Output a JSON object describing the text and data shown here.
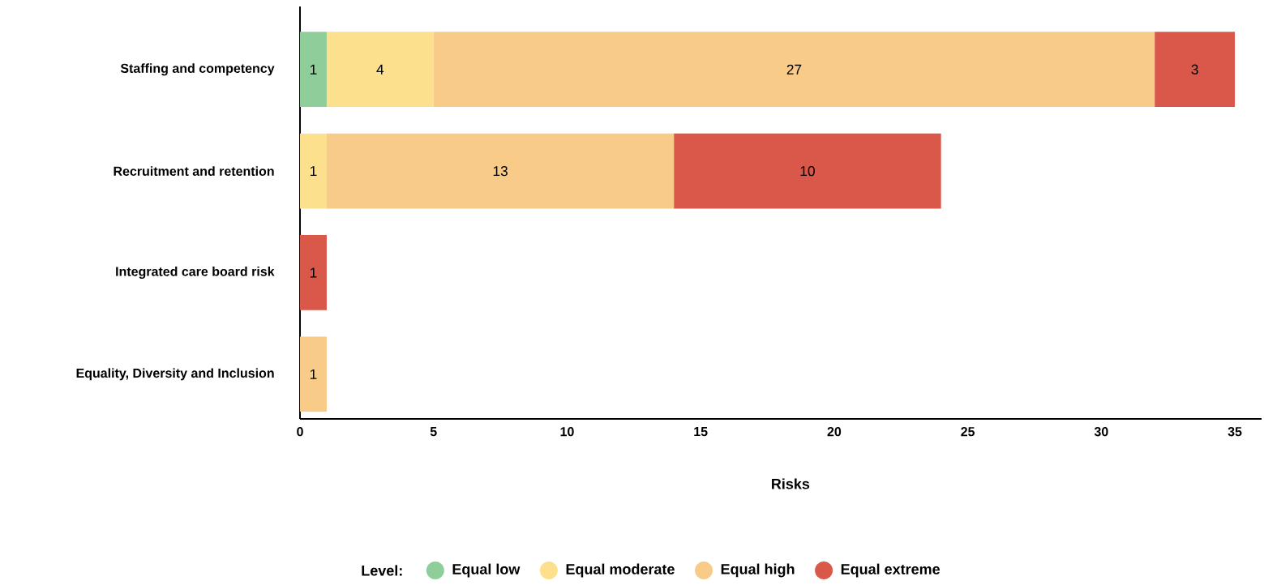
{
  "chart_data": {
    "type": "bar",
    "orientation": "horizontal",
    "stacked": true,
    "data_labels": true,
    "legend": "bottom",
    "legend_title": "Level:",
    "xlabel": "Risks",
    "categories": [
      "Staffing and competency",
      "Recruitment and retention",
      "Integrated care board risk",
      "Equality, Diversity and Inclusion"
    ],
    "xlim": [
      0,
      36
    ],
    "xticks": [
      0,
      5,
      10,
      15,
      20,
      25,
      30,
      35
    ],
    "series": [
      {
        "name": "Equal low",
        "color": "#8fce9a",
        "values": [
          1,
          null,
          null,
          null
        ]
      },
      {
        "name": "Equal moderate",
        "color": "#fde08e",
        "values": [
          4,
          1,
          null,
          null
        ]
      },
      {
        "name": "Equal high",
        "color": "#f9cb88",
        "values": [
          27,
          13,
          null,
          1
        ]
      },
      {
        "name": "Equal extreme",
        "color": "#d9584a",
        "values": [
          3,
          10,
          1,
          null
        ]
      }
    ]
  }
}
